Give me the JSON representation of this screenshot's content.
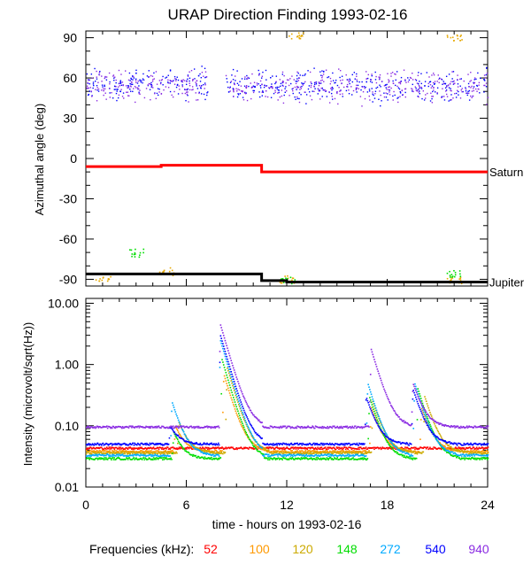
{
  "chart_data": [
    {
      "type": "scatter",
      "panel": "top",
      "title": "URAP Direction Finding  1993-02-16",
      "ylabel": "Azimuthal angle (deg)",
      "xlim": [
        0,
        24
      ],
      "ylim": [
        -95,
        95
      ],
      "yticks": [
        90,
        60,
        30,
        0,
        -30,
        -60,
        -90
      ],
      "ytick_labels": [
        "90",
        "60",
        "30",
        "0",
        "-30",
        "-60",
        "-90"
      ],
      "reference_lines": [
        {
          "name": "Saturn",
          "color": "#ff0000",
          "segments": [
            [
              0,
              4.5,
              -6
            ],
            [
              4.5,
              10.5,
              -5
            ],
            [
              10.5,
              24,
              -10
            ]
          ]
        },
        {
          "name": "Jupiter",
          "color": "#000000",
          "segments": [
            [
              0,
              10.5,
              -86
            ],
            [
              10.5,
              12.0,
              -91
            ],
            [
              12.0,
              24,
              -92
            ]
          ]
        }
      ],
      "series": [
        {
          "name": "540 kHz",
          "color": "#0000ff",
          "band_center": 55,
          "band_spread": 12
        },
        {
          "name": "940 kHz",
          "color": "#8a2be2",
          "band_center": 54,
          "band_spread": 12
        },
        {
          "name": "100/120 kHz",
          "color": "#e6a800",
          "clusters": [
            [
              1.0,
              -88
            ],
            [
              4.8,
              -84
            ],
            [
              12.0,
              -90
            ],
            [
              12.5,
              92
            ],
            [
              22.0,
              -90
            ],
            [
              22.0,
              91
            ]
          ]
        },
        {
          "name": "148 kHz",
          "color": "#00dd00",
          "clusters": [
            [
              3.0,
              -70
            ],
            [
              12.0,
              -90
            ],
            [
              22.0,
              -85
            ]
          ]
        }
      ]
    },
    {
      "type": "line",
      "panel": "bottom",
      "ylabel": "Intensity (microvolt/sqrt(Hz))",
      "xlabel": "time - hours on 1993-02-16",
      "xlim": [
        0,
        24
      ],
      "xticks": [
        0,
        6,
        12,
        18,
        24
      ],
      "xtick_labels": [
        "0",
        "6",
        "12",
        "18",
        "24"
      ],
      "yscale": "log",
      "ylim": [
        0.01,
        12
      ],
      "yticks": [
        10.0,
        1.0,
        0.1,
        0.01
      ],
      "ytick_labels": [
        "10.00",
        "1.00",
        "0.10",
        "0.01"
      ],
      "series": [
        {
          "name": "52",
          "color": "#ff0000",
          "baseline": 0.043,
          "peaks": []
        },
        {
          "name": "100",
          "color": "#ff9900",
          "baseline": 0.038,
          "peaks": [
            [
              5.3,
              0.1
            ],
            [
              8.2,
              0.7
            ],
            [
              17.0,
              0.2
            ],
            [
              20.0,
              0.2
            ]
          ]
        },
        {
          "name": "120",
          "color": "#ccaa00",
          "baseline": 0.036,
          "peaks": [
            [
              5.5,
              0.12
            ],
            [
              8.4,
              0.9
            ],
            [
              17.1,
              0.25
            ],
            [
              20.2,
              0.3
            ]
          ]
        },
        {
          "name": "148",
          "color": "#00dd00",
          "baseline": 0.029,
          "peaks": [
            [
              5.2,
              0.08
            ],
            [
              8.1,
              1.2
            ],
            [
              16.9,
              0.3
            ],
            [
              19.8,
              0.4
            ]
          ]
        },
        {
          "name": "272",
          "color": "#00aaff",
          "baseline": 0.033,
          "peaks": [
            [
              5.1,
              0.25
            ],
            [
              8.0,
              2.5
            ],
            [
              16.8,
              0.5
            ],
            [
              19.6,
              0.5
            ]
          ]
        },
        {
          "name": "540",
          "color": "#0000ff",
          "baseline": 0.05,
          "peaks": [
            [
              5.0,
              0.1
            ],
            [
              8.0,
              3.0
            ],
            [
              16.7,
              0.3
            ],
            [
              19.5,
              0.4
            ]
          ]
        },
        {
          "name": "940",
          "color": "#8a2be2",
          "baseline": 0.095,
          "peaks": [
            [
              8.0,
              4.5
            ],
            [
              17.0,
              1.8
            ],
            [
              19.5,
              0.5
            ]
          ]
        }
      ]
    }
  ],
  "legend": {
    "label": "Frequencies (kHz):",
    "items": [
      {
        "label": "52",
        "color": "#ff0000"
      },
      {
        "label": "100",
        "color": "#ff9900"
      },
      {
        "label": "120",
        "color": "#ccaa00"
      },
      {
        "label": "148",
        "color": "#00dd00"
      },
      {
        "label": "272",
        "color": "#00aaff"
      },
      {
        "label": "540",
        "color": "#0000ff"
      },
      {
        "label": "940",
        "color": "#8a2be2"
      }
    ]
  }
}
